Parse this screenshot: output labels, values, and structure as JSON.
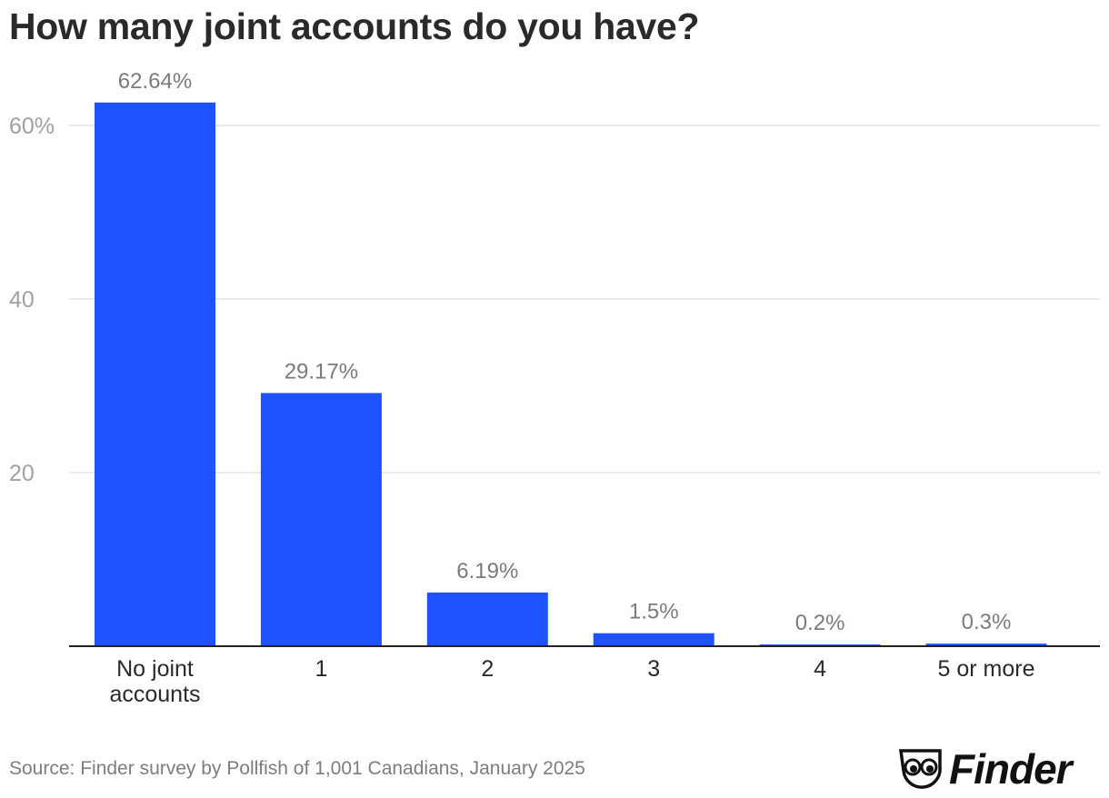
{
  "title": "How many joint accounts do you have?",
  "source": "Source: Finder survey by Pollfish of 1,001 Canadians, January 2025",
  "brand": {
    "name": "Finder",
    "bar_color": "#1f52ff"
  },
  "chart_data": {
    "type": "bar",
    "title": "How many joint accounts do you have?",
    "categories": [
      "No joint accounts",
      "1",
      "2",
      "3",
      "4",
      "5 or more"
    ],
    "category_lines": [
      [
        "No joint",
        "accounts"
      ],
      [
        "1"
      ],
      [
        "2"
      ],
      [
        "3"
      ],
      [
        "4"
      ],
      [
        "5 or more"
      ]
    ],
    "values": [
      62.64,
      29.17,
      6.19,
      1.5,
      0.2,
      0.3
    ],
    "value_labels": [
      "62.64%",
      "29.17%",
      "6.19%",
      "1.5%",
      "0.2%",
      "0.3%"
    ],
    "yticks": [
      20,
      40,
      60
    ],
    "ytick_labels": [
      "20",
      "40",
      "60%"
    ],
    "ylim": [
      0,
      60
    ],
    "grid": true,
    "xlabel": "",
    "ylabel": ""
  }
}
